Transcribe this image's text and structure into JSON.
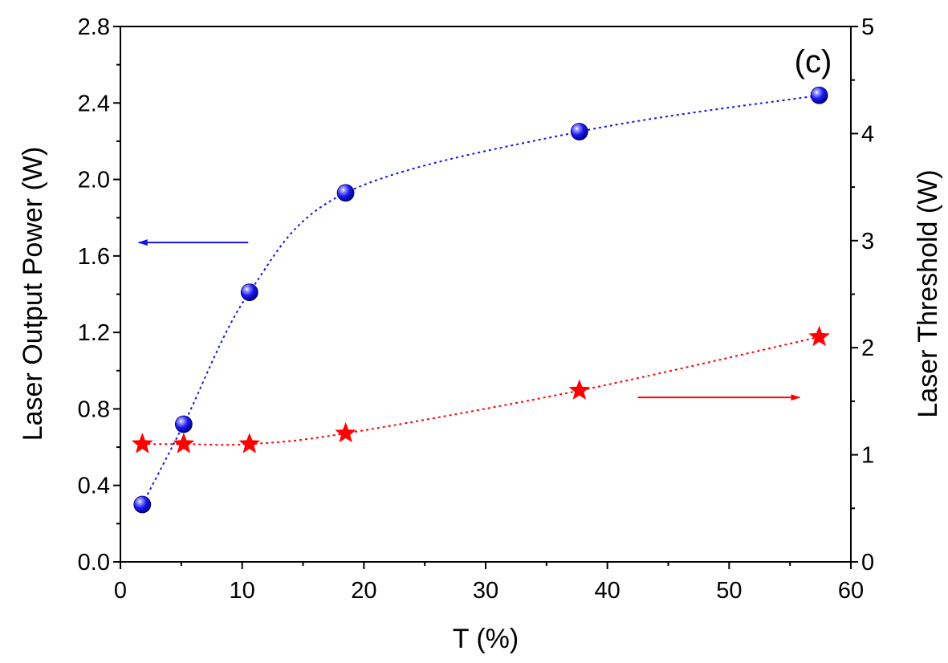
{
  "chart_data": {
    "type": "scatter",
    "panel_label": "(c)",
    "xlabel": "T (%)",
    "ylabel_left": "Laser Output Power (W)",
    "ylabel_right": "Laser Threshold (W)",
    "xlim": [
      0,
      60
    ],
    "ylim_left": [
      0,
      2.8
    ],
    "ylim_right": [
      0,
      5
    ],
    "x_ticks": [
      "0",
      "10",
      "20",
      "30",
      "40",
      "50",
      "60"
    ],
    "y_left_ticks": [
      "0.0",
      "0.4",
      "0.8",
      "1.2",
      "1.6",
      "2.0",
      "2.4",
      "2.8"
    ],
    "y_right_ticks": [
      "0",
      "1",
      "2",
      "3",
      "4",
      "5"
    ],
    "grid": false,
    "legend": "none",
    "series": [
      {
        "axis": "left",
        "marker": "sphere",
        "line": "dotted",
        "color": "#1515e0",
        "x": [
          1.8,
          5.2,
          10.6,
          18.5,
          37.7,
          57.4
        ],
        "y": [
          0.3,
          0.72,
          1.41,
          1.93,
          2.25,
          2.44
        ]
      },
      {
        "axis": "right",
        "marker": "star",
        "line": "dotted",
        "color": "#ff0000",
        "x": [
          1.8,
          5.2,
          10.6,
          18.5,
          37.7,
          57.4
        ],
        "y": [
          1.1,
          1.1,
          1.1,
          1.2,
          1.6,
          2.1
        ]
      }
    ],
    "annotations": [
      {
        "type": "arrow",
        "direction": "left",
        "points_to": "left-axis",
        "color": "#1515e0",
        "x_from": 10.5,
        "x_to": 1.5,
        "y_left": 1.67
      },
      {
        "type": "arrow",
        "direction": "right",
        "points_to": "right-axis",
        "color": "#ff0000",
        "x_from": 42.5,
        "x_to": 55.8,
        "y_left": 0.86
      }
    ]
  }
}
